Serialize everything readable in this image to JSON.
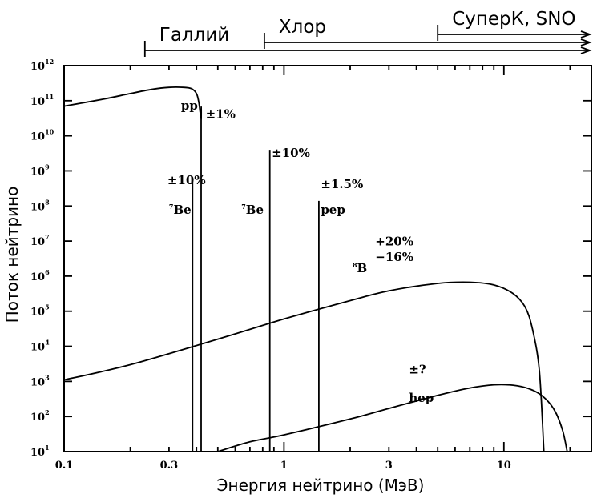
{
  "chart_data": {
    "type": "line",
    "xscale": "log",
    "yscale": "log",
    "xlim": [
      0.1,
      25
    ],
    "ylim": [
      10,
      1000000000000.0
    ],
    "xlabel": "Энергия нейтрино (МэВ)",
    "ylabel": "Поток нейтрино",
    "x_ticks": [
      {
        "value": 0.1,
        "label": "0.1"
      },
      {
        "value": 0.3,
        "label": "0.3"
      },
      {
        "value": 1,
        "label": "1"
      },
      {
        "value": 3,
        "label": "3"
      },
      {
        "value": 10,
        "label": "10"
      }
    ],
    "y_ticks": [
      {
        "value": 10,
        "base": "10",
        "exp": "1"
      },
      {
        "value": 100,
        "base": "10",
        "exp": "2"
      },
      {
        "value": 1000,
        "base": "10",
        "exp": "3"
      },
      {
        "value": 10000,
        "base": "10",
        "exp": "4"
      },
      {
        "value": 100000,
        "base": "10",
        "exp": "5"
      },
      {
        "value": 1000000,
        "base": "10",
        "exp": "6"
      },
      {
        "value": 10000000,
        "base": "10",
        "exp": "7"
      },
      {
        "value": 100000000,
        "base": "10",
        "exp": "8"
      },
      {
        "value": 1000000000,
        "base": "10",
        "exp": "9"
      },
      {
        "value": 10000000000,
        "base": "10",
        "exp": "10"
      },
      {
        "value": 100000000000,
        "base": "10",
        "exp": "11"
      },
      {
        "value": 1000000000000,
        "base": "10",
        "exp": "12"
      }
    ],
    "series": [
      {
        "x": [
          0.1,
          0.15,
          0.2,
          0.25,
          0.3,
          0.35,
          0.38,
          0.4,
          0.41,
          0.415,
          0.42,
          0.42,
          0.42
        ],
        "y": [
          70000000000.0,
          110000000000.0,
          160000000000.0,
          210000000000.0,
          240000000000.0,
          240000000000.0,
          220000000000.0,
          160000000000.0,
          90000000000.0,
          50000000000.0,
          30000000000.0,
          10000000000.0,
          10
        ]
      },
      {
        "x": [
          0.1,
          0.2,
          0.5,
          1,
          2,
          3,
          5,
          7,
          9,
          11,
          12.5,
          13.5,
          14.5,
          15.2
        ],
        "y": [
          1100,
          3000,
          16000,
          60000,
          200000,
          380000,
          620000,
          670000,
          560000,
          320000,
          130000,
          30000,
          2000,
          10
        ]
      },
      {
        "x": [
          0.5,
          0.7,
          1,
          2,
          3,
          5,
          7,
          9,
          11,
          13,
          15,
          17,
          18.5,
          19.4
        ],
        "y": [
          10,
          19,
          30,
          85,
          170,
          400,
          650,
          800,
          780,
          620,
          380,
          150,
          40,
          10
        ]
      },
      {
        "x": [
          0.384,
          0.384
        ],
        "y": [
          10,
          500000000.0
        ]
      },
      {
        "x": [
          0.862,
          0.862
        ],
        "y": [
          10,
          4000000000.0
        ]
      },
      {
        "x": [
          1.44,
          1.44
        ],
        "y": [
          10,
          140000000.0
        ]
      }
    ],
    "annotations": [
      {
        "text": "pp",
        "x": 0.34,
        "y": 55000000000.0
      },
      {
        "text": "±1%",
        "x": 0.44,
        "y": 32000000000.0
      },
      {
        "text": "±10%",
        "x": 0.295,
        "y": 420000000.0
      },
      {
        "text": "7Be",
        "x": 0.3,
        "y": 60000000.0
      },
      {
        "text": "7Be",
        "x": 0.64,
        "y": 60000000.0
      },
      {
        "text": "±10%",
        "x": 0.88,
        "y": 2500000000.0
      },
      {
        "text": "±1.5%",
        "x": 1.47,
        "y": 320000000.0
      },
      {
        "text": "pep",
        "x": 1.47,
        "y": 60000000.0
      },
      {
        "text": "+20%",
        "x": 2.6,
        "y": 7500000.0
      },
      {
        "text": "−16%",
        "x": 2.6,
        "y": 2700000.0
      },
      {
        "text": "8B",
        "x": 2.05,
        "y": 1300000.0
      },
      {
        "text": "±?",
        "x": 3.7,
        "y": 1700.0
      },
      {
        "text": "hep",
        "x": 3.7,
        "y": 260
      }
    ],
    "thresholds": [
      {
        "label": "Галлий",
        "x_start": 0.233
      },
      {
        "label": "Хлор",
        "x_start": 0.814
      },
      {
        "label": "СуперК, SNO",
        "x_start": 5.0
      }
    ]
  }
}
